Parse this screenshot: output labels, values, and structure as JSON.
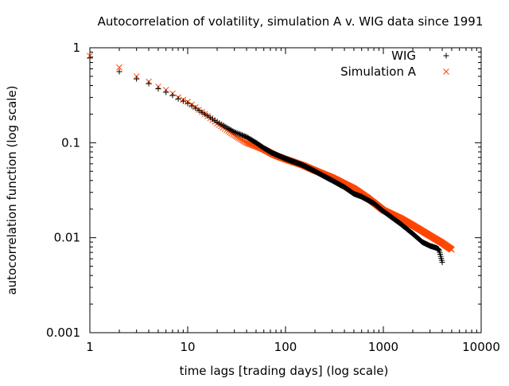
{
  "chart_data": {
    "type": "scatter",
    "title": "Autocorrelation of volatility, simulation A v. WIG data since 1991",
    "xlabel": "time lags [trading days] (log scale)",
    "ylabel": "autocorrelation function (log scale)",
    "xscale": "log",
    "yscale": "log",
    "xlim": [
      1,
      10000
    ],
    "ylim": [
      0.001,
      1
    ],
    "x_ticks": [
      {
        "value": 1,
        "label": "1"
      },
      {
        "value": 10,
        "label": "10"
      },
      {
        "value": 100,
        "label": "100"
      },
      {
        "value": 1000,
        "label": "1000"
      },
      {
        "value": 10000,
        "label": "10000"
      }
    ],
    "y_ticks": [
      {
        "value": 0.001,
        "label": "0.001"
      },
      {
        "value": 0.01,
        "label": "0.01"
      },
      {
        "value": 0.1,
        "label": "0.1"
      },
      {
        "value": 1,
        "label": "1"
      }
    ],
    "legend_position": "top-right",
    "series": [
      {
        "name": "WIG",
        "marker": "plus",
        "color": "#000000",
        "x_max": 4000,
        "points": [
          [
            1,
            0.78
          ],
          [
            2,
            0.56
          ],
          [
            3,
            0.47
          ],
          [
            4,
            0.42
          ],
          [
            5,
            0.37
          ],
          [
            6,
            0.34
          ],
          [
            7,
            0.315
          ],
          [
            8,
            0.29
          ],
          [
            10,
            0.26
          ],
          [
            15,
            0.2
          ],
          [
            20,
            0.165
          ],
          [
            30,
            0.13
          ],
          [
            40,
            0.115
          ],
          [
            50,
            0.1
          ],
          [
            60,
            0.088
          ],
          [
            70,
            0.08
          ],
          [
            80,
            0.075
          ],
          [
            100,
            0.068
          ],
          [
            150,
            0.058
          ],
          [
            200,
            0.05
          ],
          [
            300,
            0.04
          ],
          [
            400,
            0.034
          ],
          [
            500,
            0.029
          ],
          [
            600,
            0.027
          ],
          [
            800,
            0.023
          ],
          [
            1000,
            0.019
          ],
          [
            1500,
            0.014
          ],
          [
            2000,
            0.011
          ],
          [
            2500,
            0.009
          ],
          [
            3000,
            0.0082
          ],
          [
            3500,
            0.0078
          ],
          [
            3700,
            0.0075
          ],
          [
            3800,
            0.0068
          ],
          [
            4000,
            0.0055
          ]
        ]
      },
      {
        "name": "Simulation A",
        "marker": "cross",
        "color": "#ff4500",
        "x_max": 5000,
        "points": [
          [
            1,
            0.82
          ],
          [
            2,
            0.62
          ],
          [
            3,
            0.5
          ],
          [
            4,
            0.44
          ],
          [
            5,
            0.39
          ],
          [
            6,
            0.36
          ],
          [
            7,
            0.33
          ],
          [
            8,
            0.3
          ],
          [
            10,
            0.27
          ],
          [
            15,
            0.2
          ],
          [
            20,
            0.16
          ],
          [
            30,
            0.12
          ],
          [
            40,
            0.1
          ],
          [
            50,
            0.092
          ],
          [
            60,
            0.085
          ],
          [
            70,
            0.078
          ],
          [
            80,
            0.073
          ],
          [
            100,
            0.067
          ],
          [
            150,
            0.058
          ],
          [
            200,
            0.051
          ],
          [
            300,
            0.043
          ],
          [
            400,
            0.037
          ],
          [
            500,
            0.033
          ],
          [
            700,
            0.026
          ],
          [
            1000,
            0.0195
          ],
          [
            1500,
            0.016
          ],
          [
            2000,
            0.0135
          ],
          [
            3000,
            0.0105
          ],
          [
            4000,
            0.0088
          ],
          [
            5000,
            0.0075
          ]
        ]
      }
    ]
  }
}
